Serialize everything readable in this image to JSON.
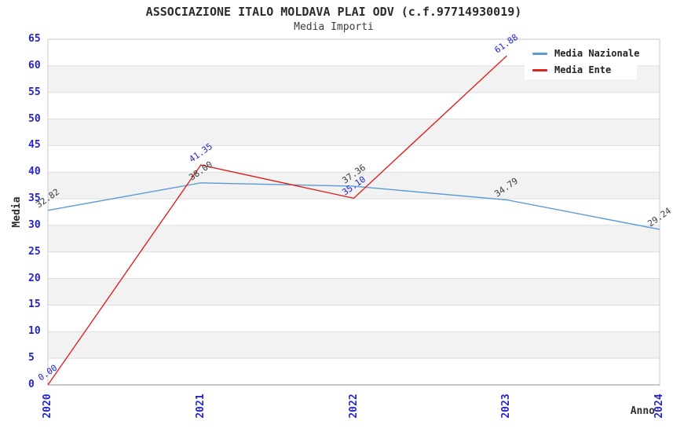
{
  "header": {
    "title": "ASSOCIAZIONE ITALO MOLDAVA PLAI ODV (c.f.97714930019)",
    "subtitle": "Media Importi"
  },
  "chart_data": {
    "type": "line",
    "x": [
      "2020",
      "2021",
      "2022",
      "2023",
      "2024"
    ],
    "xlabel": "Anno",
    "ylabel": "Media",
    "ylim": [
      0,
      65
    ],
    "ytick_step": 5,
    "grid": "horizontal gridlines with alternating shaded bands every 5 units",
    "legend_position": "top-right",
    "series": [
      {
        "name": "Media Nazionale",
        "color": "#5b9bd5",
        "values": [
          32.82,
          38.0,
          37.36,
          34.79,
          29.24
        ],
        "point_labels": [
          "32.82",
          "38.00",
          "37.36",
          "34.79",
          "29.24"
        ],
        "label_color": "#3a3a3a"
      },
      {
        "name": "Media Ente",
        "color": "#dd2222",
        "values": [
          0.0,
          41.35,
          35.1,
          61.88
        ],
        "point_labels": [
          "0.00",
          "41.35",
          "35.10",
          "61.88"
        ],
        "label_color": "#2424cd"
      }
    ]
  },
  "style_colors": {
    "tick_text": "#2424cd",
    "band_fill": "#f2f2f2",
    "gridline": "#dddddd",
    "plot_border": "#c9c9c9",
    "axis_line": "#a6a6a6",
    "title_text": "#2b2b2b"
  }
}
